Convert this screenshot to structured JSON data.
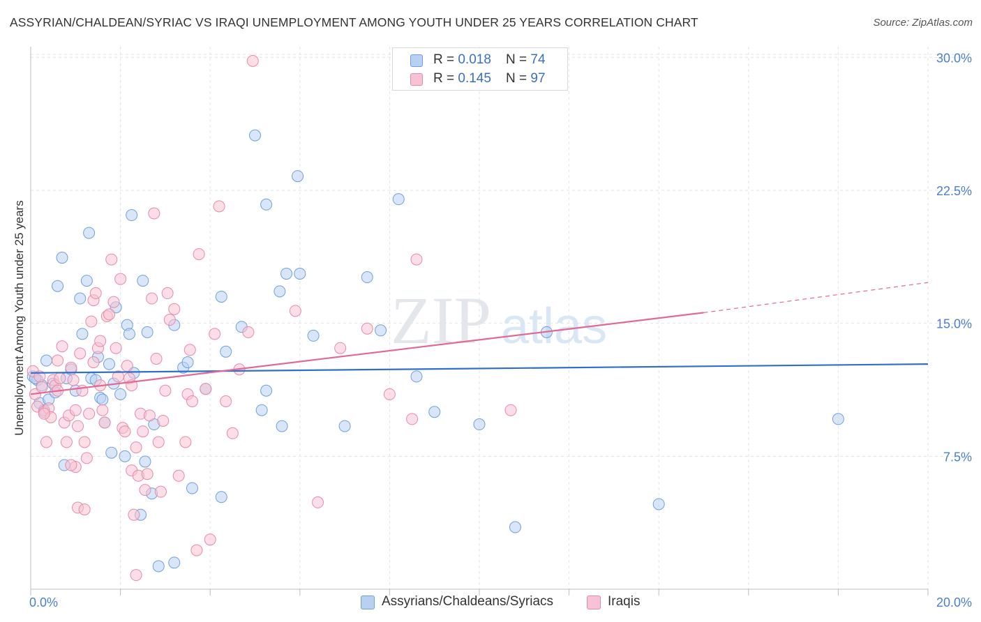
{
  "header": {
    "title": "ASSYRIAN/CHALDEAN/SYRIAC VS IRAQI UNEMPLOYMENT AMONG YOUTH UNDER 25 YEARS CORRELATION CHART",
    "source": "Source: ZipAtlas.com"
  },
  "watermark": {
    "text_zip": "ZIP",
    "text_atlas": "atlas"
  },
  "stats_legend": {
    "rows": [
      {
        "r_label": "R = ",
        "r_value": "0.018",
        "n_label": "N = ",
        "n_value": "74",
        "color": "#b8d1f3"
      },
      {
        "r_label": "R = ",
        "r_value": "0.145",
        "n_label": "N = ",
        "n_value": "97",
        "color": "#f7c2d2"
      }
    ]
  },
  "bottom_legend": {
    "items": [
      {
        "label": "Assyrians/Chaldeans/Syriacs",
        "color": "#b8d1f3"
      },
      {
        "label": "Iraqis",
        "color": "#f7c2d2"
      }
    ]
  },
  "chart_data": {
    "type": "scatter",
    "title": "ASSYRIAN/CHALDEAN/SYRIAC VS IRAQI UNEMPLOYMENT AMONG YOUTH UNDER 25 YEARS CORRELATION CHART",
    "xlabel": "",
    "ylabel": "Unemployment Among Youth under 25 years",
    "xlim": [
      0,
      20
    ],
    "ylim": [
      0,
      30.6
    ],
    "x_tick_labels": [
      {
        "value": 0,
        "label": "0.0%"
      },
      {
        "value": 20,
        "label": "20.0%"
      }
    ],
    "y_tick_labels": [
      {
        "value": 7.5,
        "label": "7.5%"
      },
      {
        "value": 15,
        "label": "15.0%"
      },
      {
        "value": 22.5,
        "label": "22.5%"
      },
      {
        "value": 30,
        "label": "30.0%"
      }
    ],
    "grid": true,
    "legend_position": "top-center",
    "series": [
      {
        "name": "Assyrians/Chaldeans/Syriacs",
        "color": "#6f9fe0",
        "fill": "#b8d1f3",
        "trend": {
          "x": [
            0,
            20
          ],
          "y": [
            12.2,
            12.7
          ],
          "color": "#2f6fcc"
        },
        "points": [
          [
            0.05,
            12.0
          ],
          [
            0.15,
            11.8
          ],
          [
            0.2,
            10.5
          ],
          [
            0.25,
            11.5
          ],
          [
            0.3,
            10.1
          ],
          [
            0.35,
            12.9
          ],
          [
            0.4,
            10.7
          ],
          [
            0.5,
            11.6
          ],
          [
            0.55,
            11.1
          ],
          [
            0.6,
            17.1
          ],
          [
            0.7,
            18.7
          ],
          [
            0.75,
            7.0
          ],
          [
            0.8,
            11.9
          ],
          [
            0.9,
            12.4
          ],
          [
            1.0,
            11.2
          ],
          [
            1.1,
            16.4
          ],
          [
            1.15,
            14.4
          ],
          [
            1.25,
            17.4
          ],
          [
            1.3,
            20.1
          ],
          [
            1.35,
            11.9
          ],
          [
            1.45,
            11.8
          ],
          [
            1.5,
            13.1
          ],
          [
            1.55,
            10.8
          ],
          [
            1.6,
            10.7
          ],
          [
            1.65,
            9.4
          ],
          [
            1.75,
            12.7
          ],
          [
            1.8,
            7.7
          ],
          [
            1.85,
            11.6
          ],
          [
            1.9,
            15.9
          ],
          [
            2.0,
            11.0
          ],
          [
            2.1,
            7.5
          ],
          [
            2.15,
            14.9
          ],
          [
            2.2,
            14.4
          ],
          [
            2.25,
            21.1
          ],
          [
            2.3,
            12.2
          ],
          [
            2.45,
            4.2
          ],
          [
            2.5,
            17.4
          ],
          [
            2.55,
            7.2
          ],
          [
            2.6,
            14.5
          ],
          [
            2.7,
            5.4
          ],
          [
            2.75,
            9.3
          ],
          [
            2.85,
            1.3
          ],
          [
            3.2,
            1.5
          ],
          [
            3.2,
            14.9
          ],
          [
            3.4,
            12.5
          ],
          [
            3.5,
            12.8
          ],
          [
            3.6,
            5.7
          ],
          [
            3.9,
            11.3
          ],
          [
            4.25,
            5.2
          ],
          [
            4.25,
            16.5
          ],
          [
            4.35,
            13.4
          ],
          [
            4.7,
            14.8
          ],
          [
            5.0,
            25.6
          ],
          [
            5.15,
            10.1
          ],
          [
            5.25,
            21.7
          ],
          [
            5.25,
            11.2
          ],
          [
            5.55,
            16.8
          ],
          [
            5.6,
            9.2
          ],
          [
            5.7,
            17.8
          ],
          [
            5.95,
            23.3
          ],
          [
            6.0,
            17.8
          ],
          [
            6.3,
            14.3
          ],
          [
            7.0,
            9.2
          ],
          [
            7.5,
            17.6
          ],
          [
            7.8,
            14.6
          ],
          [
            8.2,
            22.0
          ],
          [
            8.6,
            12.0
          ],
          [
            9.0,
            10.0
          ],
          [
            10.0,
            9.3
          ],
          [
            10.8,
            3.5
          ],
          [
            11.5,
            14.5
          ],
          [
            14.0,
            4.8
          ],
          [
            18.0,
            9.6
          ],
          [
            0.1,
            11.9
          ]
        ]
      },
      {
        "name": "Iraqis",
        "color": "#e889aa",
        "fill": "#f7c2d2",
        "trend": {
          "x": [
            0,
            15
          ],
          "y": [
            11.0,
            15.6
          ],
          "color": "#e06a95"
        },
        "trend_dashed": {
          "x": [
            15,
            20
          ],
          "y": [
            15.6,
            17.3
          ],
          "color": "#e06a95"
        },
        "points": [
          [
            0.05,
            12.3
          ],
          [
            0.1,
            11.0
          ],
          [
            0.15,
            10.3
          ],
          [
            0.2,
            12.0
          ],
          [
            0.25,
            11.4
          ],
          [
            0.3,
            10.0
          ],
          [
            0.35,
            8.3
          ],
          [
            0.4,
            10.2
          ],
          [
            0.45,
            9.7
          ],
          [
            0.5,
            11.8
          ],
          [
            0.55,
            11.5
          ],
          [
            0.6,
            12.9
          ],
          [
            0.65,
            11.9
          ],
          [
            0.7,
            13.7
          ],
          [
            0.75,
            9.4
          ],
          [
            0.8,
            8.3
          ],
          [
            0.85,
            9.8
          ],
          [
            0.9,
            12.5
          ],
          [
            0.95,
            11.8
          ],
          [
            1.0,
            10.1
          ],
          [
            1.05,
            9.2
          ],
          [
            1.1,
            13.3
          ],
          [
            1.15,
            11.2
          ],
          [
            1.2,
            8.3
          ],
          [
            1.25,
            7.4
          ],
          [
            1.3,
            9.9
          ],
          [
            1.35,
            15.1
          ],
          [
            1.4,
            16.3
          ],
          [
            1.45,
            16.7
          ],
          [
            1.5,
            13.6
          ],
          [
            1.55,
            11.5
          ],
          [
            1.6,
            10.1
          ],
          [
            1.65,
            9.4
          ],
          [
            1.7,
            15.4
          ],
          [
            1.75,
            15.5
          ],
          [
            1.8,
            18.6
          ],
          [
            1.85,
            16.2
          ],
          [
            1.9,
            13.6
          ],
          [
            1.95,
            12.0
          ],
          [
            2.0,
            17.5
          ],
          [
            2.05,
            9.1
          ],
          [
            2.1,
            8.9
          ],
          [
            2.15,
            12.6
          ],
          [
            2.2,
            11.9
          ],
          [
            2.25,
            6.7
          ],
          [
            2.3,
            4.2
          ],
          [
            2.35,
            8.0
          ],
          [
            2.4,
            6.4
          ],
          [
            2.45,
            9.9
          ],
          [
            2.5,
            8.9
          ],
          [
            2.55,
            5.6
          ],
          [
            2.6,
            6.5
          ],
          [
            2.65,
            9.8
          ],
          [
            2.7,
            16.4
          ],
          [
            2.75,
            21.2
          ],
          [
            2.8,
            13.0
          ],
          [
            2.85,
            8.3
          ],
          [
            2.9,
            5.5
          ],
          [
            2.95,
            9.5
          ],
          [
            3.05,
            16.7
          ],
          [
            3.1,
            15.2
          ],
          [
            3.2,
            15.8
          ],
          [
            3.3,
            6.4
          ],
          [
            3.45,
            8.3
          ],
          [
            3.5,
            11.0
          ],
          [
            3.55,
            13.5
          ],
          [
            3.6,
            10.6
          ],
          [
            3.7,
            2.2
          ],
          [
            3.75,
            18.9
          ],
          [
            3.9,
            11.3
          ],
          [
            4.0,
            2.8
          ],
          [
            4.1,
            14.4
          ],
          [
            4.2,
            21.6
          ],
          [
            4.35,
            10.6
          ],
          [
            4.5,
            8.8
          ],
          [
            4.65,
            12.4
          ],
          [
            4.85,
            14.5
          ],
          [
            4.95,
            29.8
          ],
          [
            5.9,
            15.7
          ],
          [
            6.4,
            4.9
          ],
          [
            6.9,
            13.6
          ],
          [
            7.5,
            14.7
          ],
          [
            8.0,
            11.0
          ],
          [
            8.5,
            9.6
          ],
          [
            8.6,
            18.6
          ],
          [
            10.7,
            10.1
          ],
          [
            1.05,
            4.6
          ],
          [
            1.0,
            6.9
          ],
          [
            1.55,
            14.0
          ],
          [
            2.25,
            11.5
          ],
          [
            0.9,
            7.0
          ],
          [
            1.2,
            4.5
          ],
          [
            0.6,
            11.2
          ],
          [
            1.4,
            12.8
          ],
          [
            0.3,
            9.9
          ],
          [
            2.35,
            0.8
          ],
          [
            3.0,
            11.2
          ]
        ]
      }
    ]
  }
}
